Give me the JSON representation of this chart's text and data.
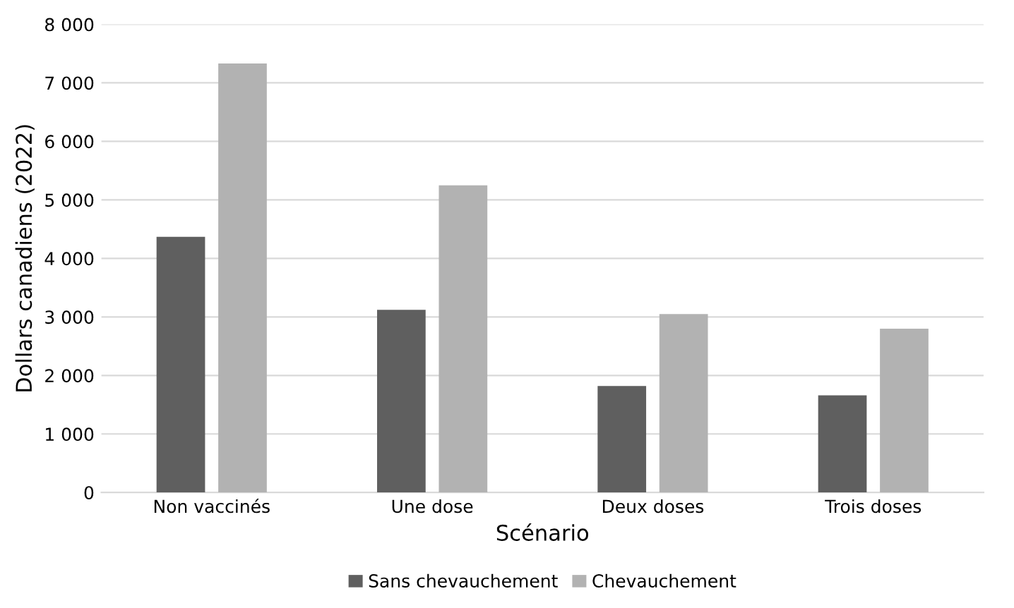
{
  "chart_data": {
    "type": "bar",
    "xlabel": "Scénario",
    "ylabel": "Dollars canadiens (2022)",
    "categories": [
      "Non vaccinés",
      "Une dose",
      "Deux doses",
      "Trois doses"
    ],
    "series": [
      {
        "name": "Sans chevauchement",
        "color": "#5f5f5f",
        "values": [
          4370,
          3120,
          1820,
          1660
        ]
      },
      {
        "name": "Chevauchement",
        "color": "#b2b2b2",
        "values": [
          7330,
          5250,
          3050,
          2800
        ]
      }
    ],
    "ylim": [
      0,
      8000
    ],
    "yticks": [
      0,
      {
        "value": 1000,
        "label": "1 000"
      },
      {
        "value": 2000,
        "label": "2 000"
      },
      {
        "value": 3000,
        "label": "3 000"
      },
      {
        "value": 4000,
        "label": "4 000"
      },
      {
        "value": 5000,
        "label": "5 000"
      },
      {
        "value": 6000,
        "label": "6 000"
      },
      {
        "value": 7000,
        "label": "7 000"
      },
      {
        "value": 8000,
        "label": "8 000"
      }
    ],
    "grid": "y",
    "legend": "bottom"
  }
}
